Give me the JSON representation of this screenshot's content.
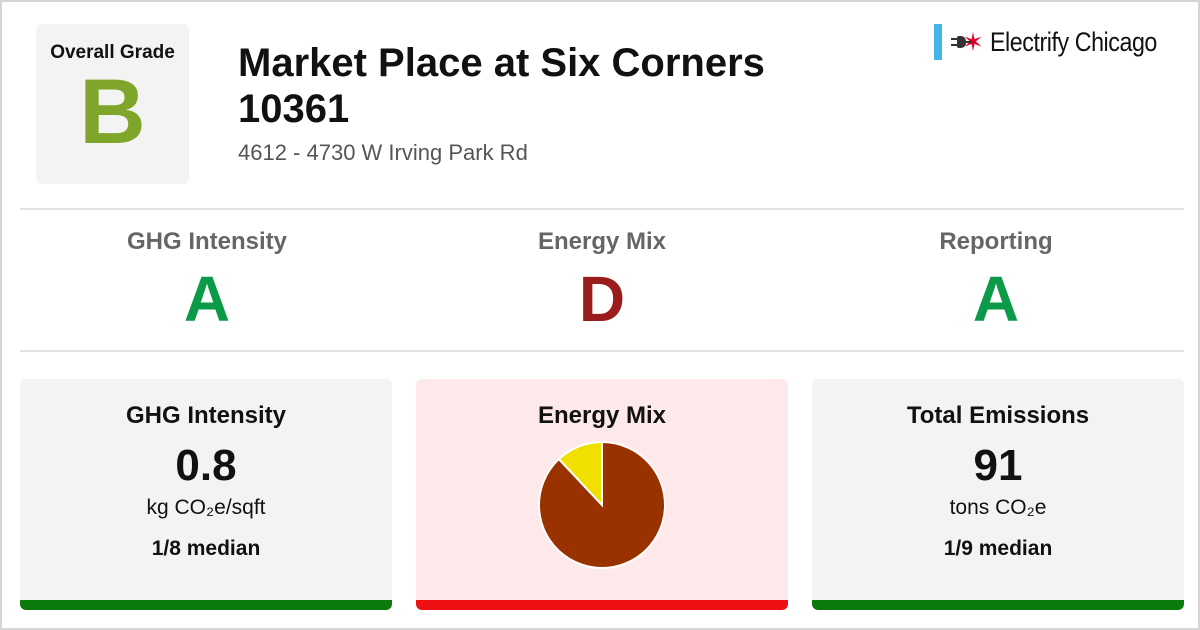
{
  "header": {
    "overall_grade_label": "Overall Grade",
    "overall_grade": "B",
    "title": "Market Place at Six Corners 10361",
    "address": "4612 - 4730 W Irving Park Rd"
  },
  "brand": {
    "name": "Electrify Chicago",
    "icons": [
      "chicago-flag-icon",
      "plug-icon",
      "star-icon"
    ]
  },
  "subgrades": [
    {
      "label": "GHG Intensity",
      "grade": "A"
    },
    {
      "label": "Energy Mix",
      "grade": "D"
    },
    {
      "label": "Reporting",
      "grade": "A"
    }
  ],
  "cards": {
    "ghg": {
      "title": "GHG Intensity",
      "value": "0.8",
      "unit": "kg CO₂e/sqft",
      "median": "1/8 median"
    },
    "mix": {
      "title": "Energy Mix"
    },
    "emissions": {
      "title": "Total Emissions",
      "value": "91",
      "unit": "tons CO₂e",
      "median": "1/9 median"
    }
  },
  "colors": {
    "grade_b": "#7fa52a",
    "grade_a": "#0a9a48",
    "grade_d": "#9b1c1c",
    "good_bar": "#0a7a0a",
    "bad_bar": "#ee1111",
    "card_bg": "#f3f3f3",
    "mix_card_bg": "#fde8ea",
    "pie_main": "#9a3200",
    "pie_minor": "#f0e000"
  },
  "chart_data": {
    "type": "pie",
    "slices": [
      {
        "value": 0.88
      },
      {
        "value": 0.12
      }
    ]
  }
}
